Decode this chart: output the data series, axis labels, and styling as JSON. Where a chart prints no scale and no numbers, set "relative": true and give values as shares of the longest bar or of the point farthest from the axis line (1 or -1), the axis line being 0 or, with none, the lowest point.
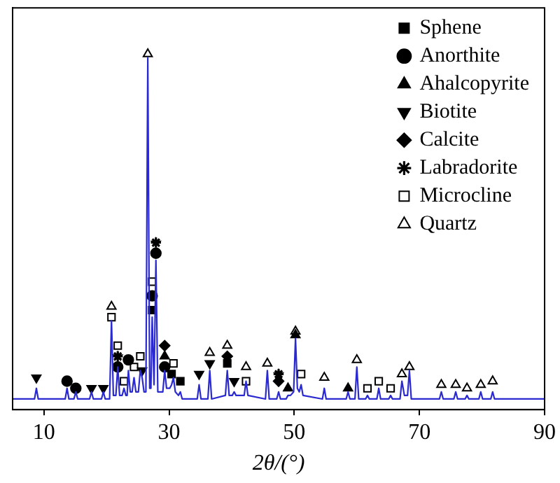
{
  "chart_data": {
    "type": "line",
    "relative": true,
    "xlabel": "2θ/(°)",
    "xlim": [
      5,
      90
    ],
    "xticks": [
      10,
      30,
      50,
      70,
      90
    ],
    "legend": "top right",
    "grid": false,
    "series": [
      {
        "color": "#2a2ad0",
        "x": [
          5,
          8.5,
          8.8,
          9.1,
          13.4,
          13.7,
          14.0,
          14.8,
          15.1,
          15.4,
          17.3,
          17.6,
          17.9,
          19.2,
          19.5,
          19.8,
          20.5,
          20.8,
          21.1,
          21.5,
          21.8,
          22.1,
          22.5,
          22.8,
          23.1,
          23.3,
          23.5,
          23.8,
          24.1,
          24.4,
          24.7,
          25.1,
          25.4,
          25.7,
          26.0,
          26.3,
          26.6,
          26.9,
          27.1,
          27.3,
          27.6,
          27.9,
          28.2,
          29.0,
          29.3,
          29.6,
          30.1,
          30.4,
          30.7,
          31.0,
          31.5,
          31.8,
          32.1,
          34.5,
          34.8,
          35.1,
          36.2,
          36.5,
          36.8,
          39.0,
          39.3,
          39.6,
          40.1,
          40.4,
          40.7,
          42.0,
          42.3,
          42.6,
          45.4,
          45.7,
          46.0,
          47.2,
          47.5,
          47.8,
          48.7,
          49.0,
          49.4,
          49.9,
          50.2,
          50.5,
          50.8,
          51.1,
          51.4,
          54.5,
          54.8,
          55.1,
          58.3,
          58.6,
          58.9,
          59.7,
          60.0,
          60.3,
          61.4,
          61.7,
          62.0,
          63.2,
          63.5,
          63.8,
          65.1,
          65.4,
          65.7,
          66.9,
          67.2,
          67.6,
          68.1,
          68.4,
          68.7,
          73.2,
          73.5,
          73.8,
          75.5,
          75.8,
          76.1,
          77.3,
          77.6,
          77.9,
          79.5,
          79.8,
          80.1,
          81.4,
          81.7,
          82.0,
          90
        ],
        "values": [
          0.03,
          0.03,
          0.06,
          0.03,
          0.03,
          0.06,
          0.03,
          0.03,
          0.05,
          0.03,
          0.03,
          0.05,
          0.03,
          0.03,
          0.05,
          0.03,
          0.03,
          0.25,
          0.04,
          0.04,
          0.12,
          0.04,
          0.04,
          0.06,
          0.04,
          0.04,
          0.11,
          0.05,
          0.05,
          0.09,
          0.05,
          0.05,
          0.11,
          0.09,
          0.05,
          0.05,
          0.99,
          0.06,
          0.06,
          0.26,
          0.07,
          0.42,
          0.05,
          0.05,
          0.11,
          0.06,
          0.06,
          0.07,
          0.09,
          0.05,
          0.04,
          0.05,
          0.03,
          0.03,
          0.07,
          0.03,
          0.03,
          0.11,
          0.03,
          0.04,
          0.11,
          0.04,
          0.04,
          0.05,
          0.04,
          0.04,
          0.08,
          0.04,
          0.03,
          0.11,
          0.03,
          0.03,
          0.05,
          0.03,
          0.03,
          0.04,
          0.04,
          0.05,
          0.2,
          0.06,
          0.05,
          0.07,
          0.04,
          0.03,
          0.06,
          0.03,
          0.03,
          0.05,
          0.03,
          0.03,
          0.12,
          0.03,
          0.03,
          0.04,
          0.03,
          0.03,
          0.06,
          0.03,
          0.03,
          0.04,
          0.03,
          0.03,
          0.08,
          0.04,
          0.04,
          0.11,
          0.03,
          0.03,
          0.05,
          0.03,
          0.03,
          0.05,
          0.03,
          0.03,
          0.04,
          0.03,
          0.03,
          0.05,
          0.03,
          0.03,
          0.05,
          0.03,
          0.03
        ]
      },
      {
        "type": "scatter",
        "name": "Sphene",
        "color": "#000000",
        "marker": "square",
        "x": [
          27.3,
          30.4,
          31.8,
          39.3
        ],
        "values": [
          0.28,
          0.1,
          0.08,
          0.13
        ]
      },
      {
        "type": "scatter",
        "name": "Anorthite",
        "color": "#000000",
        "marker": "circle",
        "x": [
          13.7,
          15.1,
          21.8,
          23.5,
          27.3,
          27.9,
          29.3
        ],
        "values": [
          0.08,
          0.06,
          0.12,
          0.14,
          0.32,
          0.44,
          0.12
        ]
      },
      {
        "type": "scatter",
        "name": "Ahalcopyrite",
        "color": "#000000",
        "marker": "triangle",
        "x": [
          29.3,
          49.0,
          50.2,
          58.6
        ],
        "values": [
          0.15,
          0.06,
          0.21,
          0.06
        ]
      },
      {
        "type": "scatter",
        "name": "Biotite",
        "color": "#000000",
        "marker": "triangle-down",
        "x": [
          8.8,
          17.6,
          19.5,
          25.7,
          34.8,
          36.5,
          40.4
        ],
        "values": [
          0.09,
          0.06,
          0.06,
          0.11,
          0.1,
          0.13,
          0.08
        ]
      },
      {
        "type": "scatter",
        "name": "Calcite",
        "color": "#000000",
        "marker": "diamond",
        "x": [
          29.3,
          39.3,
          47.5
        ],
        "values": [
          0.18,
          0.15,
          0.08
        ]
      },
      {
        "type": "scatter",
        "name": "Labradorite",
        "color": "#000000",
        "marker": "star",
        "x": [
          21.8,
          27.9,
          47.5
        ],
        "values": [
          0.15,
          0.47,
          0.1
        ]
      },
      {
        "type": "scatter",
        "name": "Microcline",
        "color": "#000000",
        "marker": "square-open",
        "x": [
          20.8,
          21.8,
          22.8,
          24.4,
          25.4,
          27.3,
          30.7,
          42.3,
          51.1,
          61.7,
          63.5,
          65.4
        ],
        "values": [
          0.26,
          0.18,
          0.08,
          0.12,
          0.15,
          0.36,
          0.13,
          0.08,
          0.1,
          0.06,
          0.08,
          0.06
        ]
      },
      {
        "type": "scatter",
        "name": "Quartz",
        "color": "#000000",
        "marker": "triangle-open",
        "x": [
          20.8,
          26.6,
          36.5,
          39.3,
          42.3,
          45.7,
          50.2,
          54.8,
          60.0,
          67.2,
          68.4,
          73.5,
          75.8,
          77.6,
          79.8,
          81.7
        ],
        "values": [
          0.29,
          1.0,
          0.16,
          0.18,
          0.12,
          0.13,
          0.22,
          0.09,
          0.14,
          0.1,
          0.12,
          0.07,
          0.07,
          0.06,
          0.07,
          0.08
        ]
      }
    ]
  }
}
